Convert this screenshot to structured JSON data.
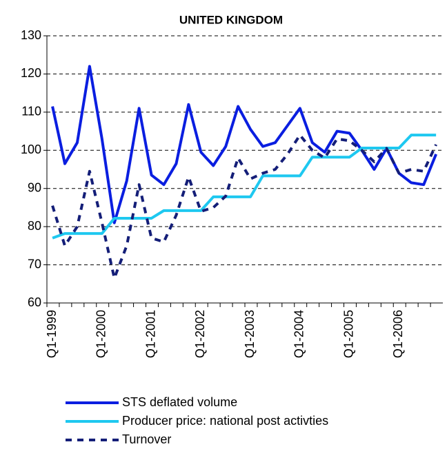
{
  "chart_data": {
    "type": "line",
    "title": "UNITED KINGDOM",
    "categories": [
      "Q1-1999",
      null,
      null,
      null,
      "Q1-2000",
      null,
      null,
      null,
      "Q1-2001",
      null,
      null,
      null,
      "Q1-2002",
      null,
      null,
      null,
      "Q1-2003",
      null,
      null,
      null,
      "Q1-2004",
      null,
      null,
      null,
      "Q1-2005",
      null,
      null,
      null,
      "Q1-2006",
      null,
      null,
      null
    ],
    "series": [
      {
        "name": "STS deflated volume",
        "color": "#0a1ee0",
        "dash": false,
        "values": [
          111.5,
          96.5,
          102,
          122,
          103,
          81,
          92,
          111,
          93.5,
          91,
          96.5,
          112,
          99.5,
          96,
          101,
          111.5,
          105.5,
          101,
          102,
          106.5,
          111,
          102,
          99.5,
          105,
          104.5,
          100,
          95,
          100.5,
          94,
          91.5,
          91,
          99
        ]
      },
      {
        "name": "Producer price: national post activties",
        "color": "#1ec8f0",
        "dash": false,
        "values": [
          77,
          78.2,
          78.2,
          78.2,
          78.2,
          82.2,
          82.2,
          82.2,
          82.2,
          84.2,
          84.2,
          84.2,
          84.2,
          87.8,
          87.8,
          87.8,
          87.8,
          93.3,
          93.3,
          93.3,
          93.3,
          98.2,
          98.2,
          98.2,
          98.2,
          100.6,
          100.6,
          100.6,
          100.6,
          104,
          104,
          104
        ]
      },
      {
        "name": "Turnover",
        "color": "#141e78",
        "dash": true,
        "values": [
          85.5,
          75,
          80,
          94.5,
          81,
          66.5,
          75,
          91,
          77,
          76,
          83,
          93,
          84,
          85,
          88,
          98,
          92.5,
          94,
          95,
          99,
          104,
          100,
          98,
          103,
          102.5,
          100,
          97,
          100.5,
          94,
          95,
          94.5,
          101.5
        ]
      }
    ],
    "ylim": [
      60,
      130
    ],
    "yticks": [
      60,
      70,
      80,
      90,
      100,
      110,
      120,
      130
    ],
    "grid": true
  }
}
